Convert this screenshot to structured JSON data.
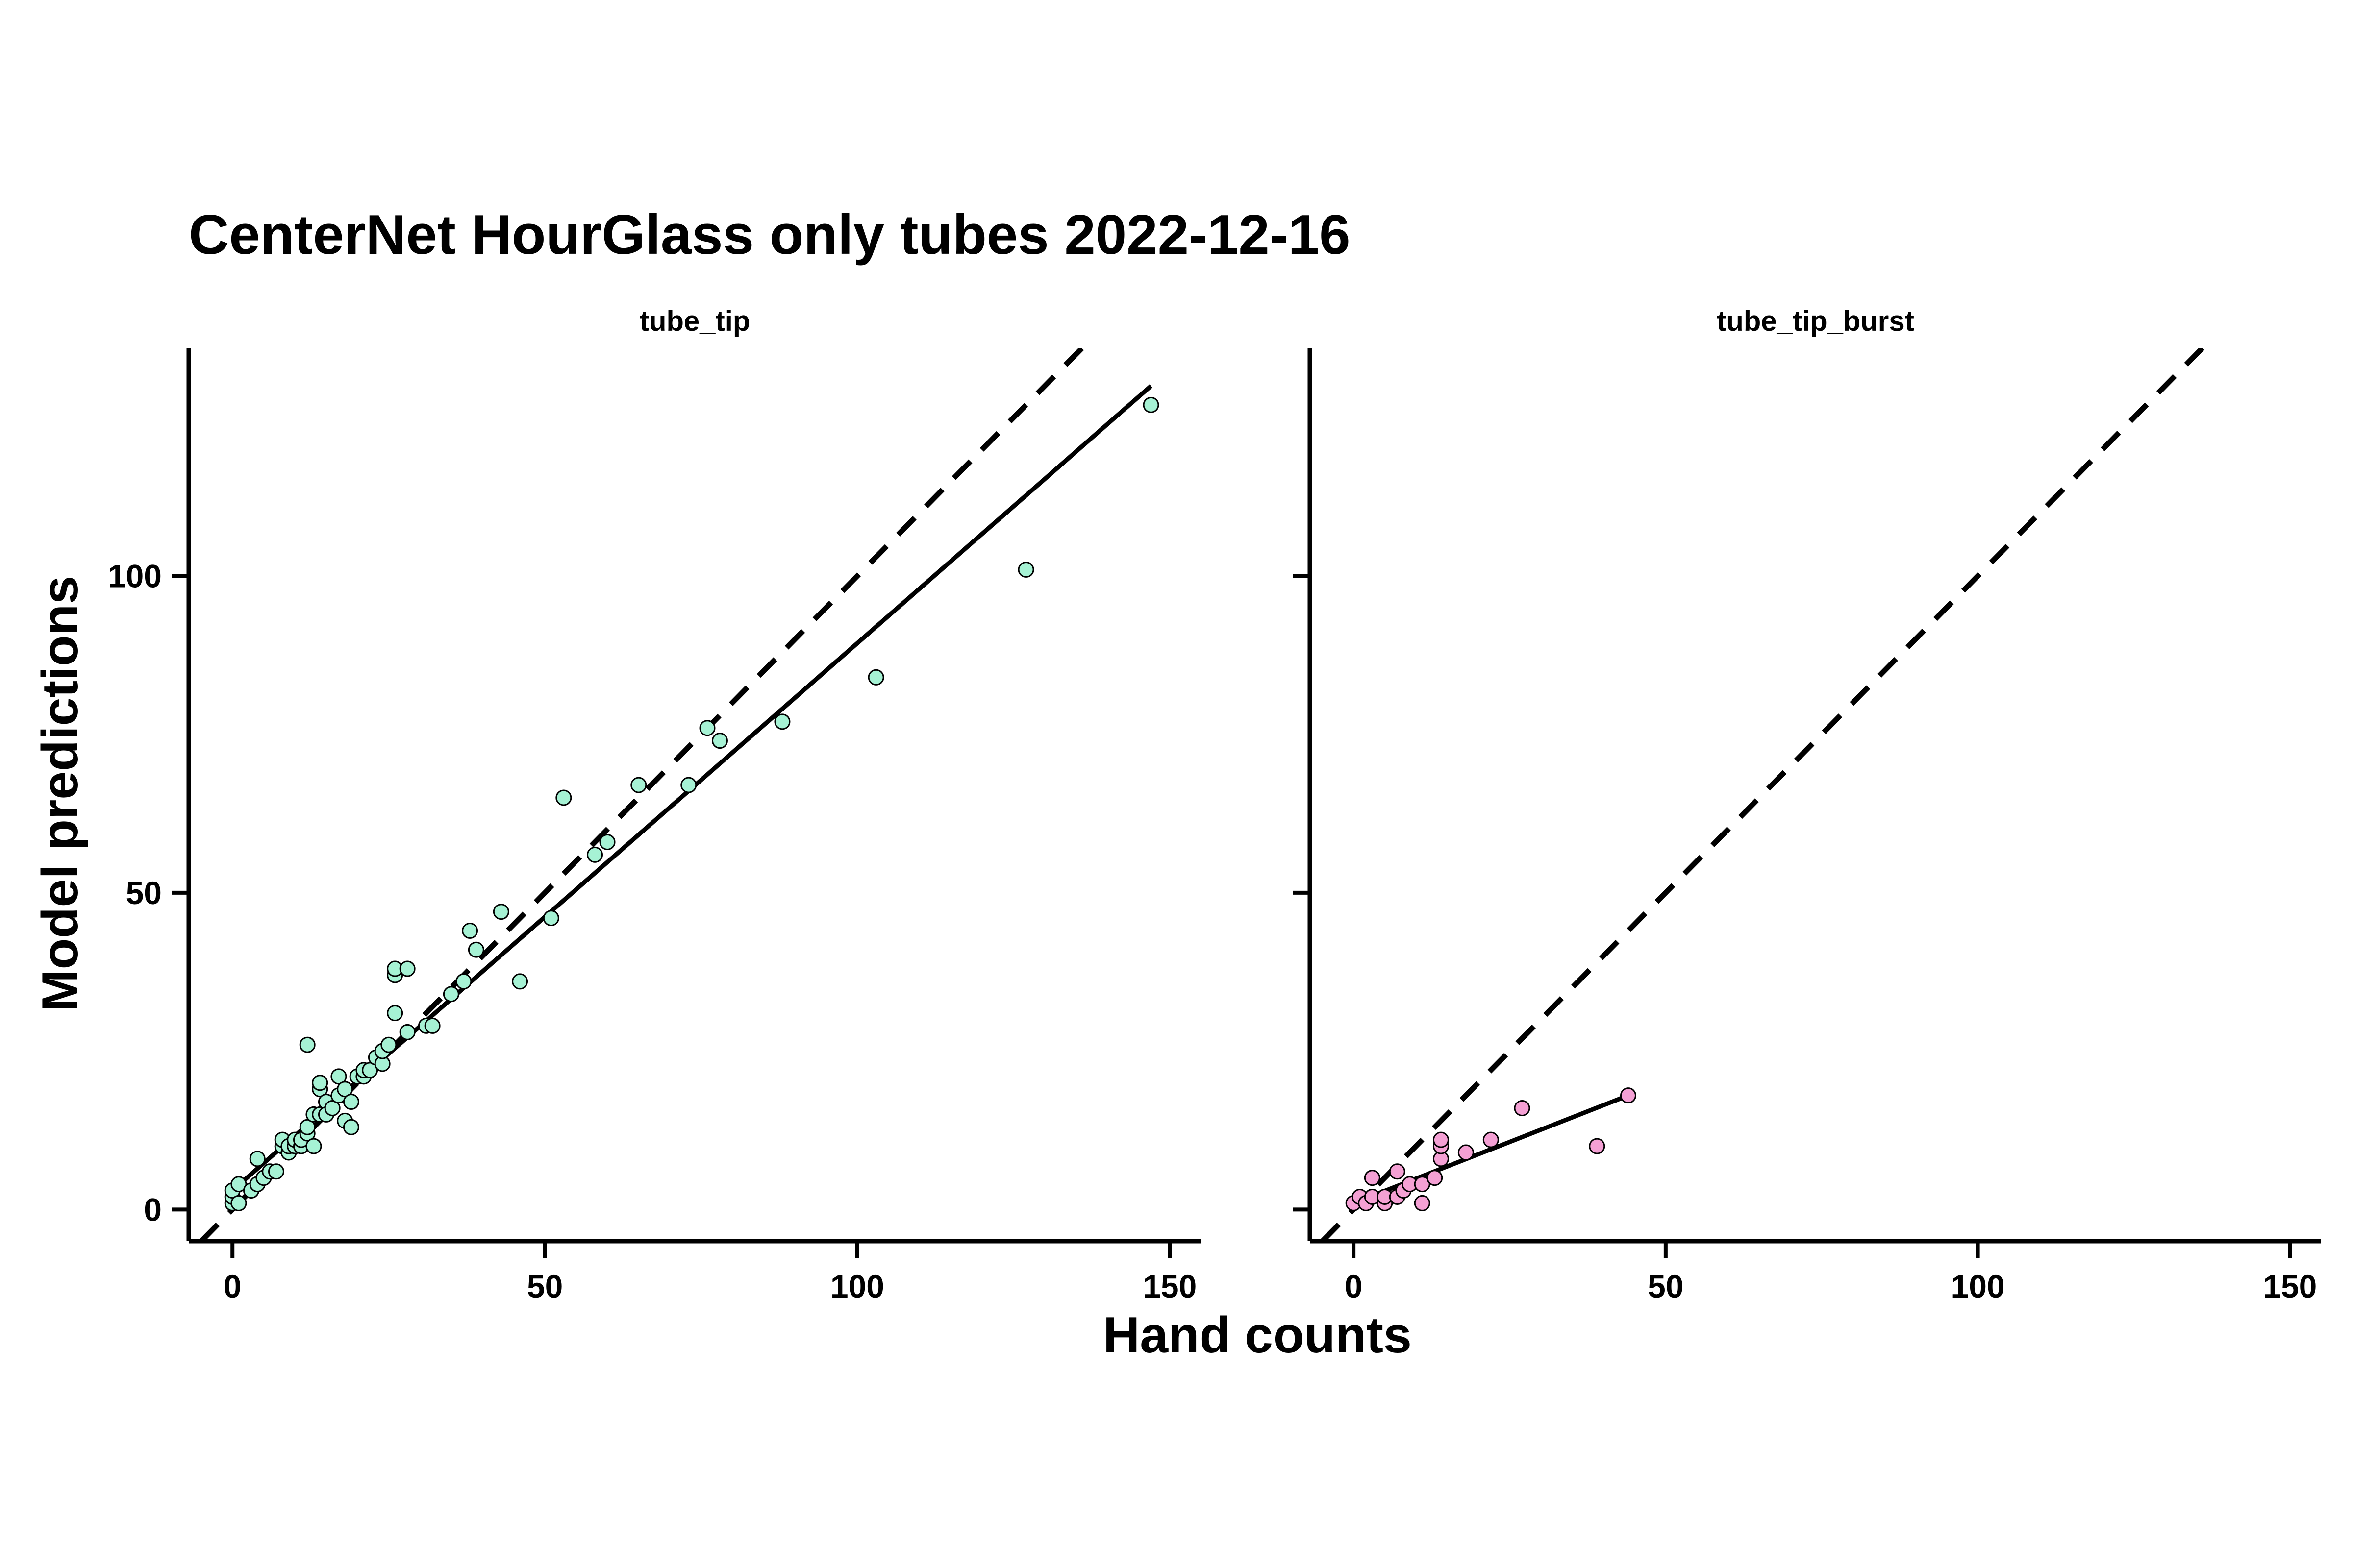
{
  "chart_data": {
    "type": "scatter",
    "title": "CenterNet HourGlass only tubes 2022-12-16",
    "xlabel": "Hand counts",
    "ylabel": "Model predictions",
    "xlim": [
      -7,
      155
    ],
    "ylim": [
      -5,
      136
    ],
    "xticks": [
      0,
      50,
      100,
      150
    ],
    "yticks": [
      0,
      50,
      100
    ],
    "grid": false,
    "legend": "none",
    "reference_line": "y = x (dashed)",
    "panels": [
      {
        "facet": "tube_tip",
        "color": "#a6f2d4",
        "fit": {
          "x": [
            0,
            147
          ],
          "y": [
            3,
            130
          ]
        },
        "points": [
          [
            0,
            1
          ],
          [
            0,
            2
          ],
          [
            0,
            3
          ],
          [
            1,
            1
          ],
          [
            1,
            4
          ],
          [
            3,
            3
          ],
          [
            4,
            4
          ],
          [
            4,
            8
          ],
          [
            5,
            5
          ],
          [
            6,
            6
          ],
          [
            7,
            6
          ],
          [
            8,
            10
          ],
          [
            8,
            11
          ],
          [
            9,
            9
          ],
          [
            9,
            10
          ],
          [
            10,
            10
          ],
          [
            10,
            11
          ],
          [
            11,
            10
          ],
          [
            11,
            11
          ],
          [
            12,
            12
          ],
          [
            12,
            13
          ],
          [
            12,
            26
          ],
          [
            13,
            10
          ],
          [
            13,
            15
          ],
          [
            14,
            15
          ],
          [
            14,
            19
          ],
          [
            14,
            20
          ],
          [
            15,
            17
          ],
          [
            15,
            15
          ],
          [
            16,
            16
          ],
          [
            17,
            21
          ],
          [
            17,
            18
          ],
          [
            18,
            14
          ],
          [
            18,
            19
          ],
          [
            19,
            13
          ],
          [
            19,
            17
          ],
          [
            20,
            21
          ],
          [
            21,
            21
          ],
          [
            21,
            22
          ],
          [
            22,
            22
          ],
          [
            23,
            24
          ],
          [
            24,
            23
          ],
          [
            24,
            25
          ],
          [
            25,
            26
          ],
          [
            26,
            31
          ],
          [
            26,
            37
          ],
          [
            26,
            38
          ],
          [
            28,
            28
          ],
          [
            28,
            38
          ],
          [
            31,
            29
          ],
          [
            32,
            29
          ],
          [
            35,
            34
          ],
          [
            37,
            36
          ],
          [
            38,
            44
          ],
          [
            39,
            41
          ],
          [
            43,
            47
          ],
          [
            46,
            36
          ],
          [
            51,
            46
          ],
          [
            53,
            65
          ],
          [
            58,
            56
          ],
          [
            60,
            58
          ],
          [
            65,
            67
          ],
          [
            73,
            67
          ],
          [
            76,
            76
          ],
          [
            78,
            74
          ],
          [
            88,
            77
          ],
          [
            103,
            84
          ],
          [
            127,
            101
          ],
          [
            147,
            127
          ]
        ]
      },
      {
        "facet": "tube_tip_burst",
        "color": "#f4a0d4",
        "fit": {
          "x": [
            0,
            44
          ],
          "y": [
            1,
            18
          ]
        },
        "points": [
          [
            0,
            1
          ],
          [
            1,
            2
          ],
          [
            2,
            1
          ],
          [
            3,
            5
          ],
          [
            3,
            2
          ],
          [
            5,
            1
          ],
          [
            5,
            2
          ],
          [
            7,
            2
          ],
          [
            7,
            6
          ],
          [
            8,
            3
          ],
          [
            9,
            4
          ],
          [
            11,
            1
          ],
          [
            11,
            4
          ],
          [
            13,
            5
          ],
          [
            14,
            8
          ],
          [
            14,
            10
          ],
          [
            14,
            11
          ],
          [
            18,
            9
          ],
          [
            22,
            11
          ],
          [
            27,
            16
          ],
          [
            39,
            10
          ],
          [
            44,
            18
          ]
        ]
      }
    ]
  }
}
